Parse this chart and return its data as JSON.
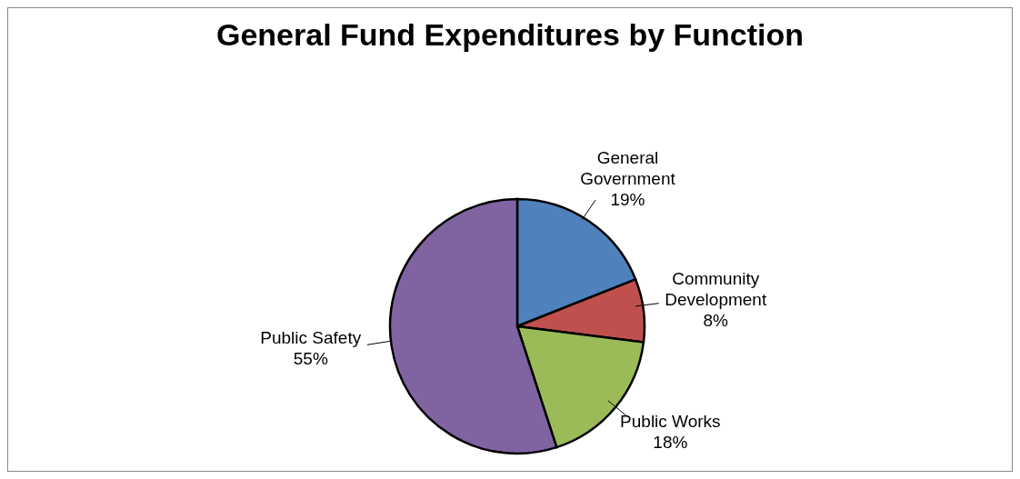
{
  "chart_data": {
    "type": "pie",
    "title": "General Fund Expenditures by Function",
    "categories": [
      "General Government",
      "Community Development",
      "Public Works",
      "Public Safety"
    ],
    "values": [
      19,
      8,
      18,
      55
    ],
    "value_labels": [
      "19%",
      "8%",
      "18%",
      "55%"
    ],
    "colors": [
      "#4f81bd",
      "#c0504d",
      "#9bbb59",
      "#8064a2"
    ]
  }
}
